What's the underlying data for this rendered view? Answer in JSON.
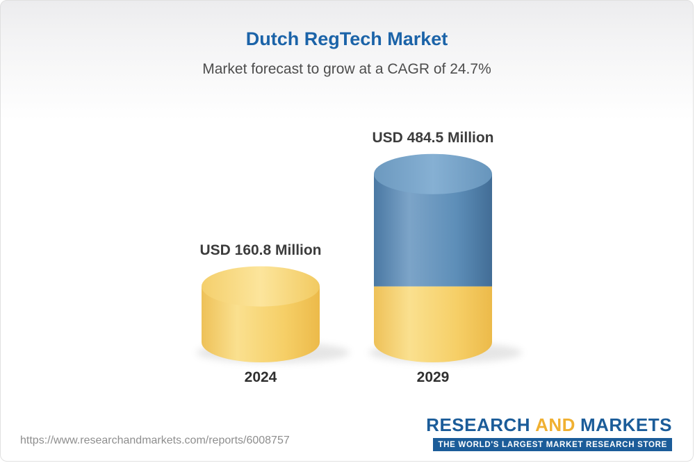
{
  "title": "Dutch RegTech Market",
  "subtitle": "Market forecast to grow at a CAGR of 24.7%",
  "chart_data": {
    "type": "bar",
    "style": "3d-cylinder",
    "title": "Dutch RegTech Market",
    "subtitle": "Market forecast to grow at a CAGR of 24.7%",
    "categories": [
      "2024",
      "2029"
    ],
    "values": [
      160.8,
      484.5
    ],
    "unit": "USD Million",
    "value_labels": [
      "USD 160.8 Million",
      "USD 484.5 Million"
    ],
    "cagr_percent": 24.7,
    "legend": "none",
    "grid": false,
    "colors": {
      "bar_2024": "#F6CF67",
      "bar_2029_top_segment": "#5D8EB8",
      "bar_2029_base_segment": "#F6CF67"
    }
  },
  "footer": {
    "url": "https://www.researchandmarkets.com/reports/6008757",
    "logo": {
      "part1": "RESEARCH",
      "part2": "AND",
      "part3": "MARKETS",
      "tagline": "THE WORLD'S LARGEST MARKET RESEARCH STORE"
    }
  },
  "colors": {
    "title_blue": "#1b63a8",
    "logo_blue": "#1b5c99",
    "logo_yellow": "#f0b031"
  }
}
